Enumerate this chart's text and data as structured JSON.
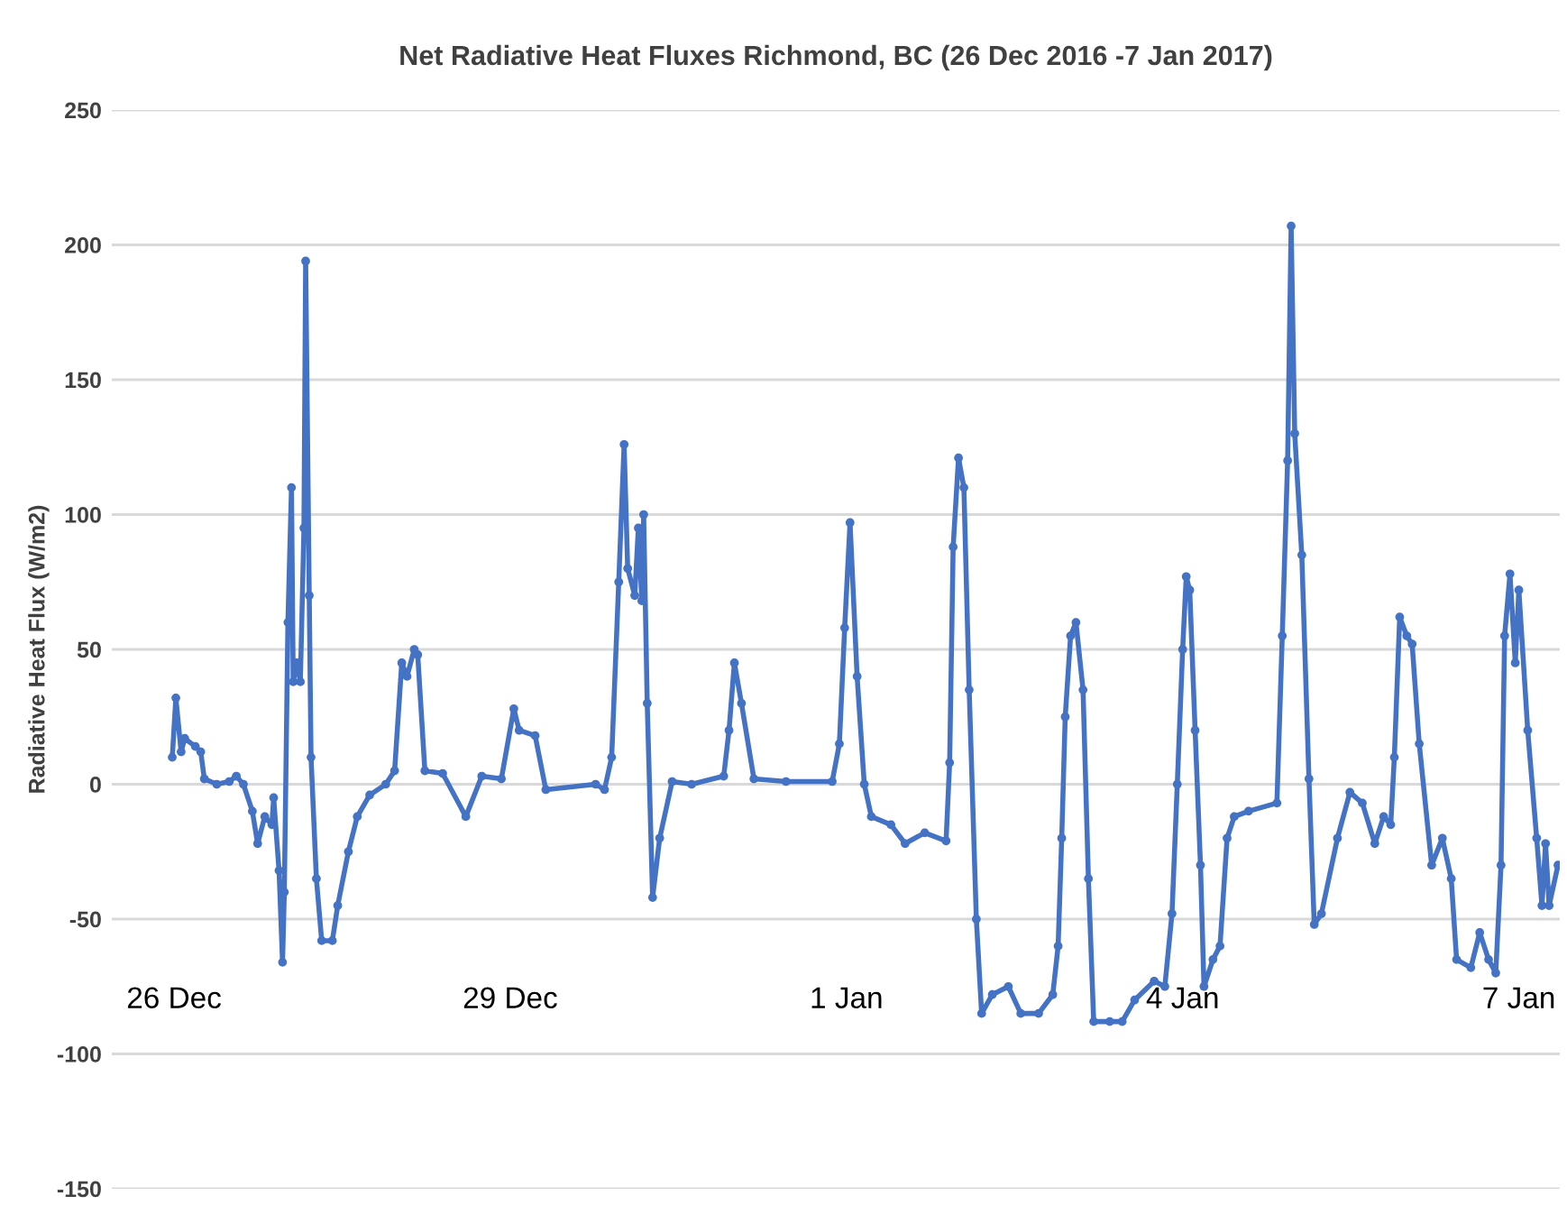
{
  "chart_data": {
    "type": "line",
    "title": "Net Radiative Heat Fluxes Richmond, BC (26 Dec 2016 -7 Jan 2017)",
    "ylabel": "Radiative Heat Flux (W/m2)",
    "x": [
      "2016-12-25T23:37",
      "2016-12-26T00:23",
      "2016-12-26T01:31",
      "2016-12-26T02:17",
      "2016-12-26T04:34",
      "2016-12-26T05:43",
      "2016-12-26T06:29",
      "2016-12-26T09:09",
      "2016-12-26T11:49",
      "2016-12-26T13:20",
      "2016-12-26T14:51",
      "2016-12-26T16:46",
      "2016-12-26T17:54",
      "2016-12-26T19:26",
      "2016-12-26T20:57",
      "2016-12-26T21:20",
      "2016-12-26T22:29",
      "2016-12-26T23:14",
      "2016-12-26T23:37",
      "2016-12-27T00:23",
      "2016-12-27T01:09",
      "2016-12-27T01:31",
      "2016-12-27T02:17",
      "2016-12-27T03:03",
      "2016-12-27T03:49",
      "2016-12-27T04:11",
      "2016-12-27T04:57",
      "2016-12-27T05:20",
      "2016-12-27T06:29",
      "2016-12-27T07:37",
      "2016-12-27T09:54",
      "2016-12-27T11:03",
      "2016-12-27T13:20",
      "2016-12-27T15:14",
      "2016-12-27T17:54",
      "2016-12-27T21:20",
      "2016-12-27T23:14",
      "2016-12-28T00:46",
      "2016-12-28T01:54",
      "2016-12-28T03:26",
      "2016-12-28T04:11",
      "2016-12-28T05:43",
      "2016-12-28T09:31",
      "2016-12-28T14:29",
      "2016-12-28T17:54",
      "2016-12-28T22:06",
      "2016-12-29T00:46",
      "2016-12-29T01:54",
      "2016-12-29T05:20",
      "2016-12-29T07:37",
      "2016-12-29T18:17",
      "2016-12-29T20:11",
      "2016-12-29T21:43",
      "2016-12-29T23:14",
      "2016-12-30T00:23",
      "2016-12-30T01:09",
      "2016-12-30T02:40",
      "2016-12-30T03:26",
      "2016-12-30T04:11",
      "2016-12-30T04:34",
      "2016-12-30T05:20",
      "2016-12-30T06:29",
      "2016-12-30T08:00",
      "2016-12-30T10:40",
      "2016-12-30T14:51",
      "2016-12-30T21:43",
      "2016-12-30T22:51",
      "2016-12-31T00:00",
      "2016-12-31T01:31",
      "2016-12-31T04:11",
      "2016-12-31T11:03",
      "2016-12-31T20:57",
      "2016-12-31T22:29",
      "2016-12-31T23:37",
      "2017-01-01T00:46",
      "2017-01-01T02:17",
      "2017-01-01T03:49",
      "2017-01-01T05:20",
      "2017-01-01T09:31",
      "2017-01-01T12:34",
      "2017-01-01T16:46",
      "2017-01-01T21:20",
      "2017-01-01T22:06",
      "2017-01-01T22:51",
      "2017-01-02T00:00",
      "2017-01-02T01:09",
      "2017-01-02T02:17",
      "2017-01-02T03:49",
      "2017-01-02T04:57",
      "2017-01-02T07:14",
      "2017-01-02T10:40",
      "2017-01-02T13:20",
      "2017-01-02T17:09",
      "2017-01-02T20:11",
      "2017-01-02T21:20",
      "2017-01-02T22:06",
      "2017-01-02T22:51",
      "2017-01-03T00:00",
      "2017-01-03T01:09",
      "2017-01-03T02:40",
      "2017-01-03T03:49",
      "2017-01-03T04:57",
      "2017-01-03T08:23",
      "2017-01-03T11:03",
      "2017-01-03T13:43",
      "2017-01-03T17:54",
      "2017-01-03T20:11",
      "2017-01-03T21:43",
      "2017-01-03T22:51",
      "2017-01-04T00:00",
      "2017-01-04T00:46",
      "2017-01-04T01:31",
      "2017-01-04T02:40",
      "2017-01-04T03:49",
      "2017-01-04T04:34",
      "2017-01-04T06:29",
      "2017-01-04T08:00",
      "2017-01-04T09:31",
      "2017-01-04T11:03",
      "2017-01-04T14:06",
      "2017-01-04T20:11",
      "2017-01-04T21:20",
      "2017-01-04T22:29",
      "2017-01-04T23:14",
      "2017-01-05T00:00",
      "2017-01-05T01:31",
      "2017-01-05T03:03",
      "2017-01-05T04:11",
      "2017-01-05T05:43",
      "2017-01-05T09:09",
      "2017-01-05T11:49",
      "2017-01-05T14:29",
      "2017-01-05T17:09",
      "2017-01-05T19:03",
      "2017-01-05T20:34",
      "2017-01-05T21:20",
      "2017-01-05T22:29",
      "2017-01-06T00:00",
      "2017-01-06T01:09",
      "2017-01-06T02:40",
      "2017-01-06T05:20",
      "2017-01-06T07:37",
      "2017-01-06T09:31",
      "2017-01-06T10:40",
      "2017-01-06T13:43",
      "2017-01-06T15:37",
      "2017-01-06T17:31",
      "2017-01-06T19:03",
      "2017-01-06T20:11",
      "2017-01-06T20:57",
      "2017-01-06T22:06",
      "2017-01-06T23:14",
      "2017-01-07T00:00",
      "2017-01-07T01:54",
      "2017-01-07T03:49",
      "2017-01-07T04:57",
      "2017-01-07T05:43",
      "2017-01-07T06:29",
      "2017-01-07T08:23"
    ],
    "series": [
      {
        "color": "#4472c4",
        "values": [
          10,
          32,
          12,
          17,
          14,
          12,
          2,
          0,
          1,
          3,
          0,
          -10,
          -22,
          -12,
          -15,
          -5,
          -32,
          -66,
          -40,
          60,
          110,
          38,
          45,
          38,
          95,
          194,
          70,
          10,
          -35,
          -58,
          -58,
          -45,
          -25,
          -12,
          -4,
          0,
          5,
          45,
          40,
          50,
          48,
          5,
          4,
          -12,
          3,
          2,
          28,
          20,
          18,
          -2,
          0,
          -2,
          10,
          75,
          126,
          80,
          70,
          95,
          68,
          100,
          30,
          -42,
          -20,
          1,
          0,
          3,
          20,
          45,
          30,
          2,
          1,
          1,
          15,
          58,
          97,
          40,
          0,
          -12,
          -15,
          -22,
          -18,
          -21,
          8,
          88,
          121,
          110,
          35,
          -50,
          -85,
          -78,
          -75,
          -85,
          -85,
          -78,
          -60,
          -20,
          25,
          55,
          60,
          35,
          -35,
          -88,
          -88,
          -88,
          -80,
          -73,
          -75,
          -48,
          0,
          50,
          77,
          72,
          20,
          -30,
          -75,
          -65,
          -60,
          -20,
          -12,
          -10,
          -7,
          55,
          120,
          207,
          130,
          85,
          2,
          -52,
          -48,
          -20,
          -3,
          -7,
          -22,
          -12,
          -15,
          10,
          62,
          55,
          52,
          15,
          -30,
          -20,
          -35,
          -65,
          -68,
          -55,
          -65,
          -70,
          -30,
          55,
          78,
          45,
          72,
          20,
          -20,
          -45,
          -22,
          -45,
          -30
        ]
      }
    ],
    "xlim": [
      "2016-12-25T10:40",
      "2017-01-07T08:46"
    ],
    "xticks": [
      {
        "value": "2016-12-26",
        "label": "26 Dec"
      },
      {
        "value": "2016-12-29",
        "label": "29 Dec"
      },
      {
        "value": "2017-01-01",
        "label": "1 Jan"
      },
      {
        "value": "2017-01-04",
        "label": "4 Jan"
      },
      {
        "value": "2017-01-07",
        "label": "7 Jan"
      }
    ],
    "ylim": [
      -150,
      250
    ],
    "yticks": [
      -150,
      -100,
      -50,
      0,
      50,
      100,
      150,
      200,
      250
    ],
    "grid": "y",
    "marker": "circle",
    "line_style": "solid"
  }
}
